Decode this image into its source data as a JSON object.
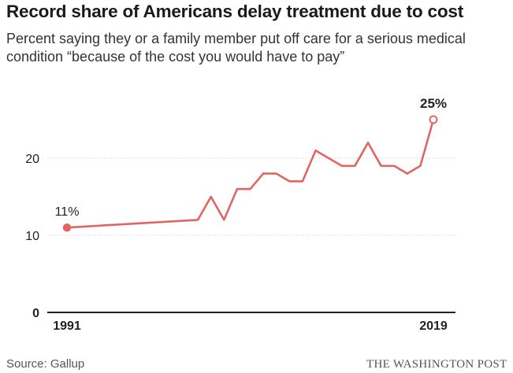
{
  "title": "Record share of Americans delay treatment due to cost",
  "subtitle": "Percent saying they or a family member put off care for a serious medical condition “because of the cost you would have to pay”",
  "source": "Source: Gallup",
  "credit": "THE WASHINGTON POST",
  "chart_data": {
    "type": "line",
    "title": "Record share of Americans delay treatment due to cost",
    "subtitle": "Percent saying they or a family member put off care for a serious medical condition “because of the cost you would have to pay”",
    "xlabel": "",
    "ylabel": "",
    "xlim": [
      1991,
      2019
    ],
    "ylim": [
      0,
      25
    ],
    "yticks": [
      0,
      10,
      20
    ],
    "ytick_labels": [
      "0",
      "10",
      "20"
    ],
    "xtick_labels": [
      "1991",
      "2019"
    ],
    "grid": true,
    "color": "#e06666",
    "series": [
      {
        "x": [
          1991,
          2001,
          2002,
          2003,
          2004,
          2005,
          2006,
          2007,
          2008,
          2009,
          2010,
          2011,
          2012,
          2013,
          2014,
          2015,
          2016,
          2017,
          2018,
          2019
        ],
        "y": [
          11,
          12,
          15,
          12,
          16,
          16,
          18,
          18,
          17,
          17,
          21,
          20,
          19,
          19,
          22,
          19,
          19,
          18,
          19,
          25
        ]
      }
    ],
    "annotations": [
      {
        "text": "11%",
        "x": 1991,
        "y": 11
      },
      {
        "text": "25%",
        "x": 2019,
        "y": 25
      }
    ]
  }
}
